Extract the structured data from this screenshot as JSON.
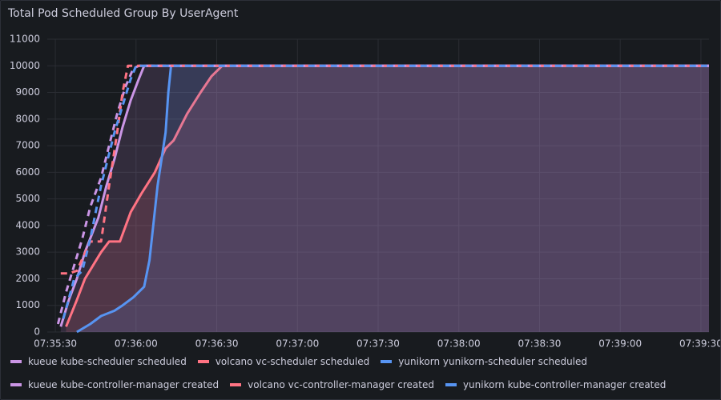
{
  "chart_data": {
    "type": "line",
    "title": "Total Pod Scheduled Group By UserAgent",
    "xlim": [
      "07:35:27",
      "07:39:33"
    ],
    "xticks": [
      "07:35:30",
      "07:36:00",
      "07:36:30",
      "07:37:00",
      "07:37:30",
      "07:38:00",
      "07:38:30",
      "07:39:00",
      "07:39:30"
    ],
    "ylim": [
      0,
      11000
    ],
    "yticks": [
      0,
      1000,
      2000,
      3000,
      4000,
      5000,
      6000,
      7000,
      8000,
      9000,
      10000,
      11000
    ],
    "grid": true,
    "series": [
      {
        "name": "kueue kube-scheduler scheduled",
        "color": "#ca95e5",
        "dash": false,
        "fill": true,
        "x": [
          "07:35:32",
          "07:35:35",
          "07:35:38",
          "07:35:41",
          "07:35:46",
          "07:35:49",
          "07:35:52",
          "07:35:55",
          "07:35:58",
          "07:36:01",
          "07:36:03",
          "07:39:33"
        ],
        "values": [
          200,
          1200,
          2000,
          3000,
          4300,
          5500,
          6500,
          7700,
          8700,
          9500,
          10000,
          10000
        ]
      },
      {
        "name": "volcano vc-scheduler scheduled",
        "color": "#ff7383",
        "dash": false,
        "fill": true,
        "x": [
          "07:35:34",
          "07:35:38",
          "07:35:41",
          "07:35:44",
          "07:35:47",
          "07:35:50",
          "07:35:54",
          "07:35:58",
          "07:36:02",
          "07:36:07",
          "07:36:11",
          "07:36:14",
          "07:36:19",
          "07:36:24",
          "07:36:28",
          "07:36:32",
          "07:39:33"
        ],
        "values": [
          200,
          1200,
          2000,
          2500,
          3000,
          3400,
          3400,
          4500,
          5200,
          6000,
          6900,
          7200,
          8200,
          9000,
          9600,
          10000,
          10000
        ]
      },
      {
        "name": "yunikorn yunikorn-scheduler scheduled",
        "color": "#5794f2",
        "dash": false,
        "fill": true,
        "x": [
          "07:35:38",
          "07:35:43",
          "07:35:47",
          "07:35:52",
          "07:35:55",
          "07:35:59",
          "07:36:03",
          "07:36:05",
          "07:36:08",
          "07:36:11",
          "07:36:12",
          "07:36:13",
          "07:39:33"
        ],
        "values": [
          0,
          300,
          600,
          800,
          1000,
          1300,
          1700,
          2700,
          5500,
          7500,
          9000,
          10000,
          10000
        ]
      },
      {
        "name": "kueue kube-controller-manager created",
        "color": "#ca95e5",
        "dash": true,
        "fill": false,
        "x": [
          "07:35:31",
          "07:35:34",
          "07:35:37",
          "07:35:40",
          "07:35:43",
          "07:35:47",
          "07:35:50",
          "07:35:53",
          "07:35:56",
          "07:35:59",
          "07:36:01",
          "07:39:33"
        ],
        "values": [
          300,
          1500,
          2500,
          3500,
          4700,
          5800,
          7000,
          8200,
          9200,
          9900,
          10000,
          10000
        ]
      },
      {
        "name": "volcano vc-controller-manager created",
        "color": "#ff7383",
        "dash": true,
        "fill": false,
        "x": [
          "07:35:32",
          "07:35:35",
          "07:35:38",
          "07:35:43",
          "07:35:47",
          "07:35:50",
          "07:35:53",
          "07:35:55",
          "07:35:57",
          "07:39:33"
        ],
        "values": [
          2200,
          2200,
          2300,
          3400,
          3400,
          5500,
          7500,
          9000,
          10000,
          10000
        ]
      },
      {
        "name": "yunikorn kube-controller-manager created",
        "color": "#5794f2",
        "dash": true,
        "fill": false,
        "x": [
          "07:35:33",
          "07:35:37",
          "07:35:40",
          "07:35:43",
          "07:35:47",
          "07:35:52",
          "07:35:55",
          "07:35:58",
          "07:36:00",
          "07:39:33"
        ],
        "values": [
          500,
          2000,
          2300,
          3500,
          5500,
          7500,
          8500,
          9500,
          10000,
          10000
        ]
      }
    ]
  }
}
